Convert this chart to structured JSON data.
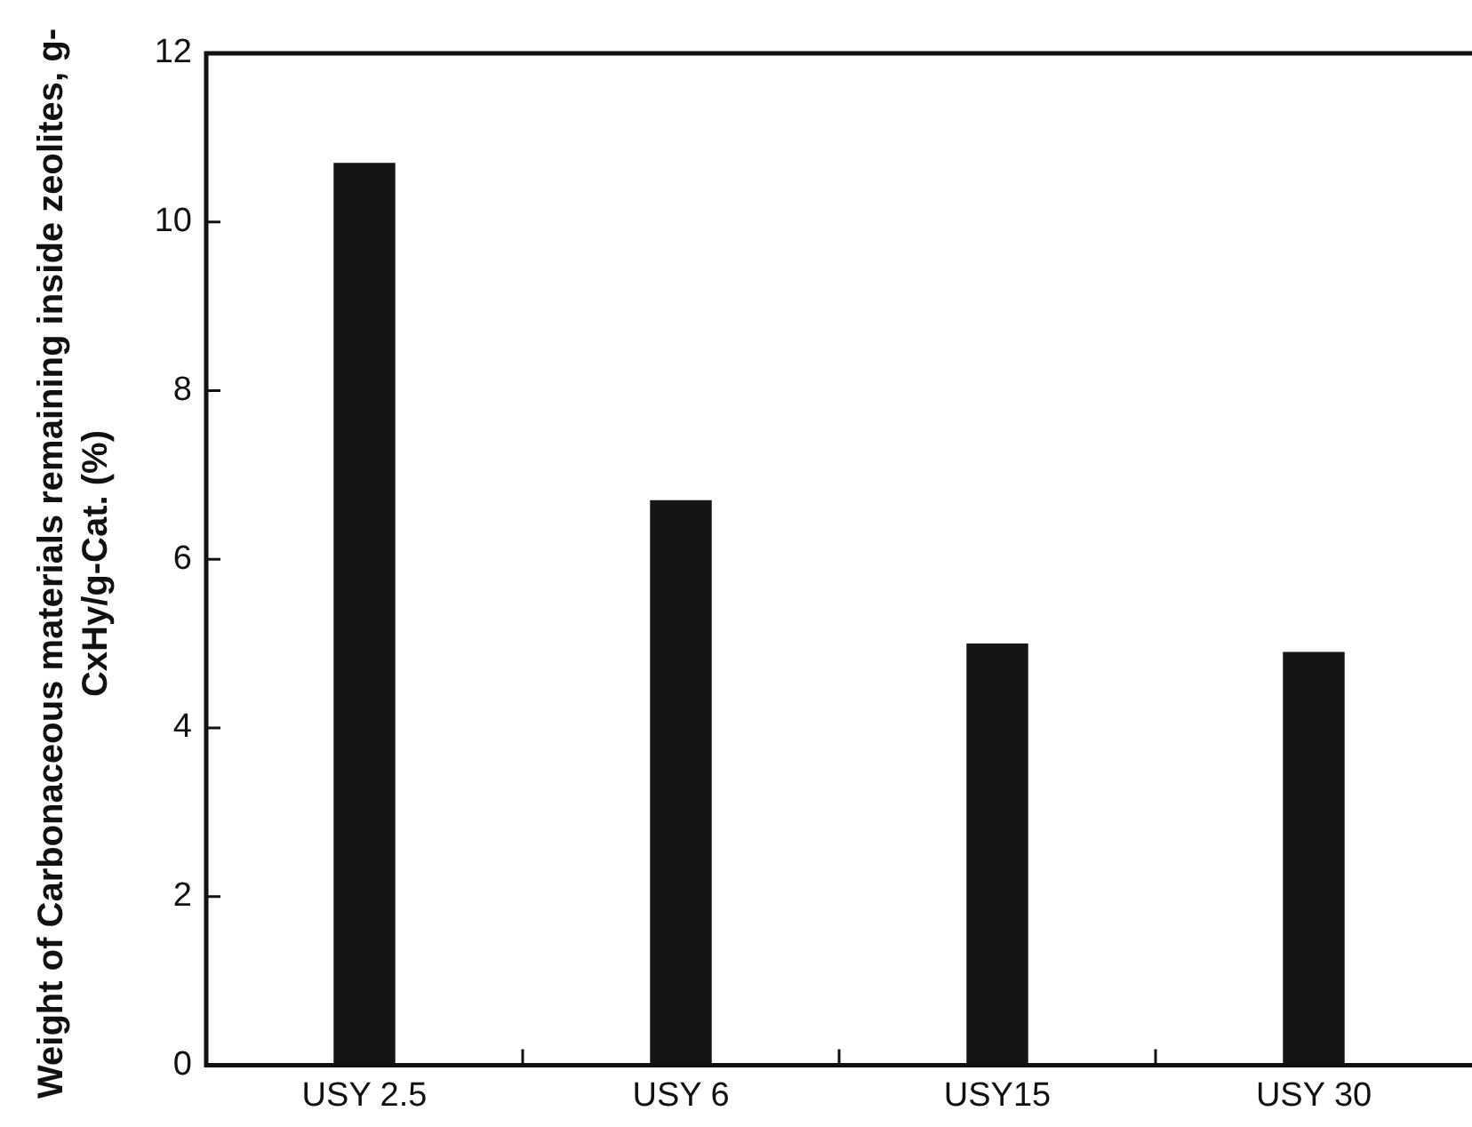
{
  "chart_data": {
    "type": "bar",
    "ylabel": "Weight of Carbonaceous materials remaining inside zeolites, g-CxHy/g-Cat. (%)",
    "categories": [
      "USY 2.5",
      "USY 6",
      "USY15",
      "USY 30"
    ],
    "values": [
      10.7,
      6.7,
      5.0,
      4.9
    ],
    "color": "#151515",
    "ylim": [
      0,
      12
    ],
    "yticks": [
      0,
      2,
      4,
      6,
      8,
      10,
      12
    ],
    "grid": false,
    "legend": false
  }
}
